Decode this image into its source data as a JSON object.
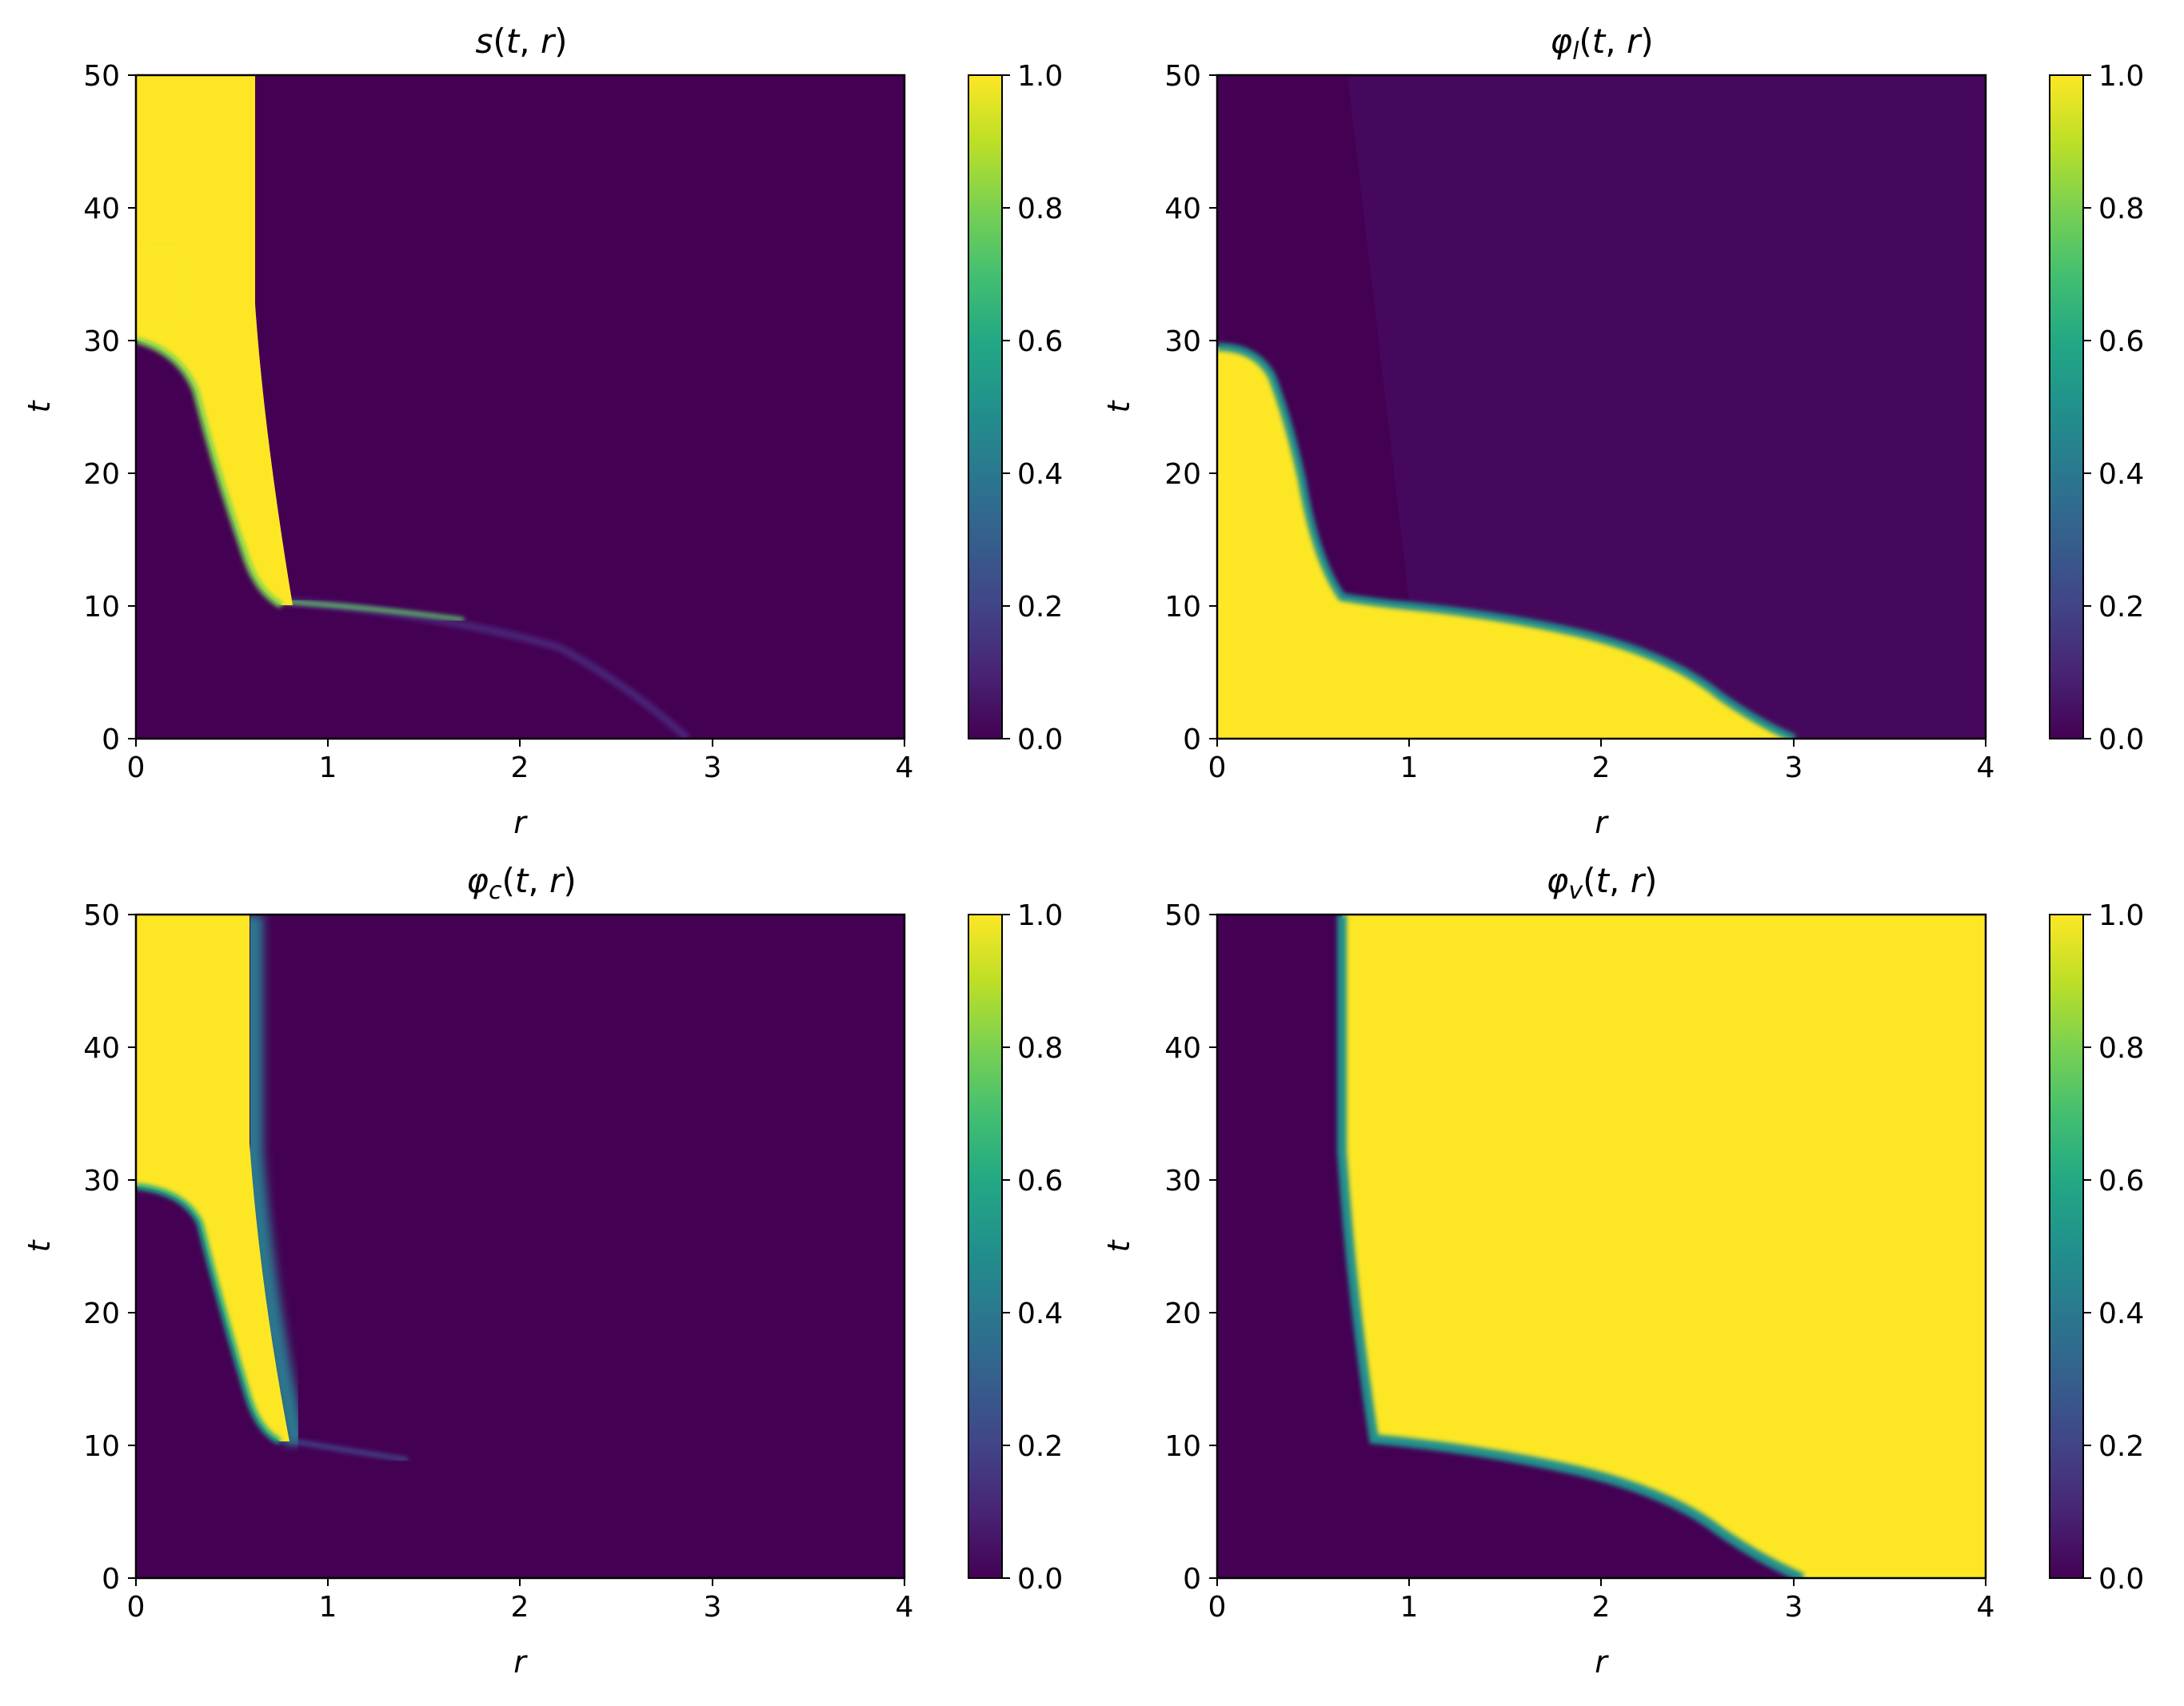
{
  "chart_data": [
    {
      "type": "heatmap",
      "title": "s(t, r)",
      "xlabel": "r",
      "ylabel": "t",
      "xlim": [
        0,
        4
      ],
      "ylim": [
        0,
        50
      ],
      "xticks": [
        "0",
        "1",
        "2",
        "3",
        "4"
      ],
      "yticks": [
        "0",
        "10",
        "20",
        "30",
        "40",
        "50"
      ],
      "colorbar": {
        "range": [
          0.0,
          1.0
        ],
        "ticks": [
          "0.0",
          "0.2",
          "0.4",
          "0.6",
          "0.8",
          "1.0"
        ],
        "colormap": "viridis"
      },
      "value_range": [
        0.0,
        1.0
      ],
      "features": [
        {
          "description": "thin streak",
          "r": [
            0.8,
            2.9
          ],
          "t": [
            10,
            0
          ],
          "value": 0.12
        },
        {
          "description": "bright front",
          "r": [
            0.75,
            1.7
          ],
          "t": [
            10,
            9
          ],
          "value": 0.85
        },
        {
          "description": "high region",
          "boundary_left": [
            [
              0.0,
              30.5
            ],
            [
              0.3,
              27
            ],
            [
              0.55,
              14
            ],
            [
              0.75,
              10.2
            ]
          ],
          "boundary_right": [
            [
              0.62,
              50
            ],
            [
              0.62,
              33
            ],
            [
              0.7,
              20
            ],
            [
              0.82,
              10.2
            ]
          ],
          "value": 1.0
        }
      ]
    },
    {
      "type": "heatmap",
      "title": "φl(t, r)",
      "xlabel": "r",
      "ylabel": "t",
      "xlim": [
        0,
        4
      ],
      "ylim": [
        0,
        50
      ],
      "xticks": [
        "0",
        "1",
        "2",
        "3",
        "4"
      ],
      "yticks": [
        "0",
        "10",
        "20",
        "30",
        "40",
        "50"
      ],
      "colorbar": {
        "range": [
          0.0,
          1.0
        ],
        "ticks": [
          "0.0",
          "0.2",
          "0.4",
          "0.6",
          "0.8",
          "1.0"
        ],
        "colormap": "viridis"
      },
      "value_range": [
        0.0,
        1.0
      ],
      "features": [
        {
          "description": "high region",
          "boundary": [
            [
              0.0,
              29.5
            ],
            [
              0.25,
              28
            ],
            [
              0.45,
              20
            ],
            [
              0.65,
              11
            ],
            [
              1.0,
              9.8
            ],
            [
              1.5,
              9.0
            ],
            [
              2.0,
              7.5
            ],
            [
              2.5,
              4.5
            ],
            [
              2.85,
              1.5
            ],
            [
              3.0,
              0
            ]
          ],
          "value": 1.0
        },
        {
          "description": "background right",
          "value": 0.06
        }
      ]
    },
    {
      "type": "heatmap",
      "title": "φc(t, r)",
      "xlabel": "r",
      "ylabel": "t",
      "xlim": [
        0,
        4
      ],
      "ylim": [
        0,
        50
      ],
      "xticks": [
        "0",
        "1",
        "2",
        "3",
        "4"
      ],
      "yticks": [
        "0",
        "10",
        "20",
        "30",
        "40",
        "50"
      ],
      "colorbar": {
        "range": [
          0.0,
          1.0
        ],
        "ticks": [
          "0.0",
          "0.2",
          "0.4",
          "0.6",
          "0.8",
          "1.0"
        ],
        "colormap": "viridis"
      },
      "value_range": [
        0.0,
        1.0
      ],
      "features": [
        {
          "description": "high region",
          "boundary_left": [
            [
              0.0,
              29.5
            ],
            [
              0.3,
              27
            ],
            [
              0.55,
              14
            ],
            [
              0.72,
              10.5
            ]
          ],
          "boundary_right": [
            [
              0.6,
              50
            ],
            [
              0.6,
              33
            ],
            [
              0.7,
              20
            ],
            [
              0.82,
              10.5
            ]
          ],
          "value": 1.0
        },
        {
          "description": "thin streak",
          "r": [
            0.75,
            1.4
          ],
          "t": [
            10.3,
            9.0
          ],
          "value": 0.2
        }
      ]
    },
    {
      "type": "heatmap",
      "title": "φv(t, r)",
      "xlabel": "r",
      "ylabel": "t",
      "xlim": [
        0,
        4
      ],
      "ylim": [
        0,
        50
      ],
      "xticks": [
        "0",
        "1",
        "2",
        "3",
        "4"
      ],
      "yticks": [
        "0",
        "10",
        "20",
        "30",
        "40",
        "50"
      ],
      "colorbar": {
        "range": [
          0.0,
          1.0
        ],
        "ticks": [
          "0.0",
          "0.2",
          "0.4",
          "0.6",
          "0.8",
          "1.0"
        ],
        "colormap": "viridis"
      },
      "value_range": [
        0.0,
        1.0
      ],
      "features": [
        {
          "description": "low region",
          "boundary": [
            [
              0.65,
              50
            ],
            [
              0.65,
              33
            ],
            [
              0.72,
              20
            ],
            [
              0.82,
              10.2
            ],
            [
              1.5,
              9.0
            ],
            [
              2.0,
              7.5
            ],
            [
              2.5,
              4.5
            ],
            [
              2.85,
              1.5
            ],
            [
              3.05,
              0
            ]
          ],
          "value": 0.0
        },
        {
          "description": "high region",
          "value": 1.0
        }
      ]
    }
  ],
  "colors": {
    "viridis_low": "#440154",
    "viridis_dark": "#46085c",
    "viridis_mid": "#21918c",
    "viridis_green": "#5ec962",
    "viridis_high": "#fde725",
    "axis": "#000000",
    "background": "#ffffff"
  }
}
